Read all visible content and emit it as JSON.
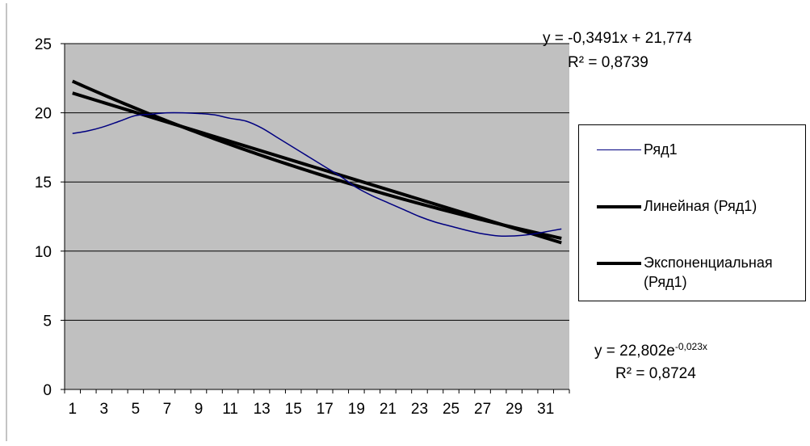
{
  "chart_data": {
    "type": "line",
    "x": [
      1,
      2,
      3,
      4,
      5,
      6,
      7,
      8,
      9,
      10,
      11,
      12,
      13,
      14,
      15,
      16,
      17,
      18,
      19,
      20,
      21,
      22,
      23,
      24,
      25,
      26,
      27,
      28,
      29,
      30,
      31,
      32
    ],
    "series": [
      {
        "name": "Ряд1",
        "color": "#000080",
        "values": [
          18.5,
          18.7,
          19.0,
          19.4,
          19.8,
          19.9,
          20.0,
          20.0,
          19.95,
          19.85,
          19.6,
          19.4,
          18.9,
          18.2,
          17.5,
          16.8,
          16.1,
          15.4,
          14.6,
          14.0,
          13.5,
          13.0,
          12.5,
          12.1,
          11.8,
          11.5,
          11.25,
          11.1,
          11.1,
          11.2,
          11.4,
          11.6
        ]
      }
    ],
    "trendlines": [
      {
        "name": "Линейная (Ряд1)",
        "kind": "linear",
        "slope": -0.3491,
        "intercept": 21.774,
        "equation": "y = -0,3491x + 21,774",
        "r2_text": "R² = 0,8739"
      },
      {
        "name": "Экспоненциальная (Ряд1)",
        "kind": "exponential",
        "a": 22.802,
        "b": -0.023,
        "equation_base": "y = 22,802e",
        "equation_exp": "-0,023x",
        "r2_text": "R² = 0,8724"
      }
    ],
    "ylim": [
      0,
      25
    ],
    "yticks": [
      "0",
      "5",
      "10",
      "15",
      "20",
      "25"
    ],
    "xtick_labels": [
      "1",
      "3",
      "5",
      "7",
      "9",
      "11",
      "13",
      "15",
      "17",
      "19",
      "21",
      "23",
      "25",
      "27",
      "29",
      "31"
    ],
    "grid": true,
    "plot_background": "#c0c0c0",
    "legend_placement": "right"
  }
}
